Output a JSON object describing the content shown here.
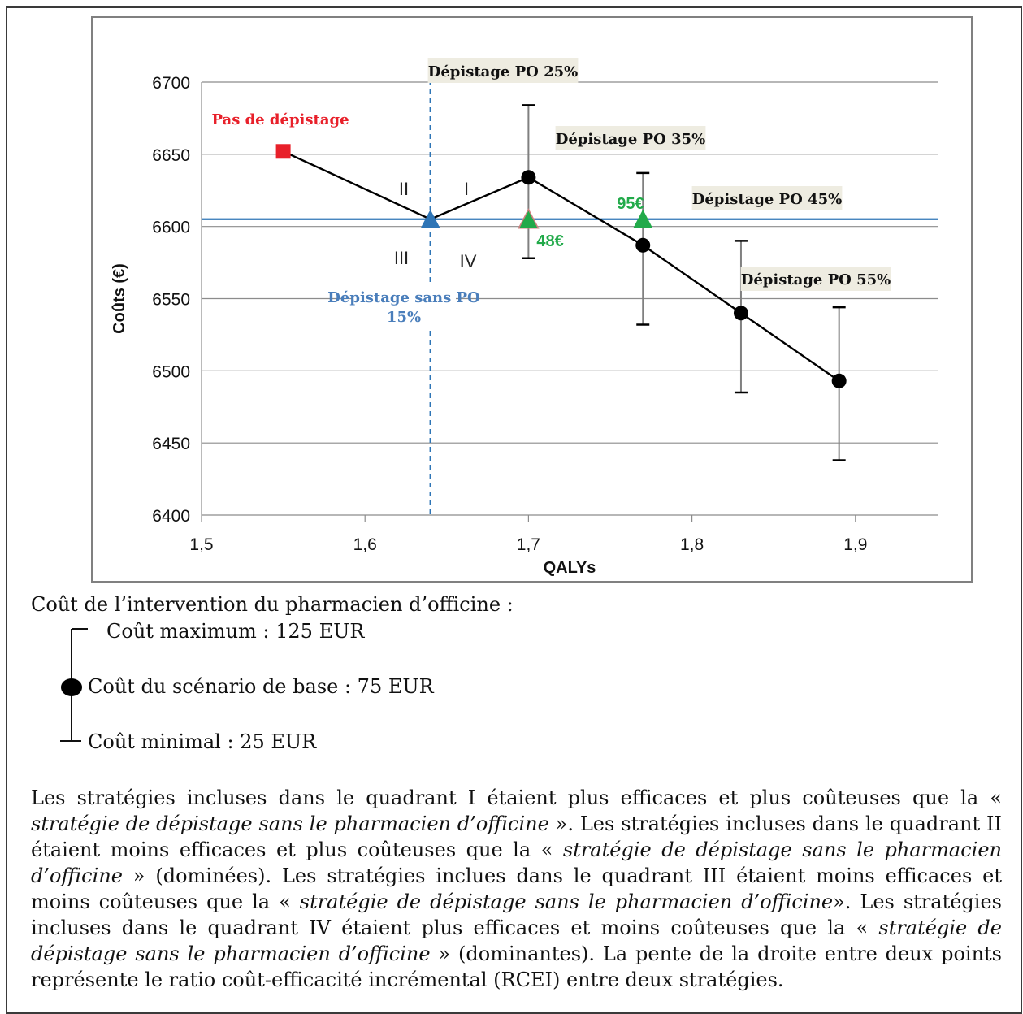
{
  "chart_data": {
    "type": "scatter",
    "xlabel": "QALYs",
    "ylabel": "Coûts (€)",
    "xlim": [
      1.5,
      1.95
    ],
    "ylim": [
      6400,
      6700
    ],
    "x_ticks": [
      "1,5",
      "1,6",
      "1,7",
      "1,8",
      "1,9"
    ],
    "x_tick_values": [
      1.5,
      1.6,
      1.7,
      1.8,
      1.9
    ],
    "y_ticks": [
      "6400",
      "6450",
      "6500",
      "6550",
      "6600",
      "6650",
      "6700"
    ],
    "y_tick_values": [
      6400,
      6450,
      6500,
      6550,
      6600,
      6650,
      6700
    ],
    "grid": "horizontal",
    "series": [
      {
        "name": "",
        "points": [
          {
            "label": "Pas de dépistage",
            "x": 1.55,
            "y": 6652,
            "marker": "square",
            "color": "#e8202a",
            "label_color": "#e8202a"
          },
          {
            "label": "Dépistage sans PO 15%",
            "x": 1.64,
            "y": 6605,
            "marker": "triangle",
            "color": "#2e75b6",
            "label_color": "#4a7ebb"
          },
          {
            "label": "Dépistage PO 25%",
            "x": 1.7,
            "y": 6634,
            "y_max": 6684,
            "y_min": 6578,
            "marker": "circle",
            "color": "#000000"
          },
          {
            "label": "Dépistage PO 35%",
            "x": 1.77,
            "y": 6587,
            "y_max": 6637,
            "y_min": 6532,
            "marker": "circle",
            "color": "#000000"
          },
          {
            "label": "Dépistage PO 45%",
            "x": 1.83,
            "y": 6540,
            "y_max": 6590,
            "y_min": 6485,
            "marker": "circle",
            "color": "#000000"
          },
          {
            "label": "Dépistage PO 55%",
            "x": 1.89,
            "y": 6493,
            "y_max": 6544,
            "y_min": 6438,
            "marker": "circle",
            "color": "#000000"
          }
        ]
      }
    ],
    "threshold_markers": [
      {
        "label": "48€",
        "x": 1.7,
        "y": 6605,
        "color": "#22aa4a"
      },
      {
        "label": "95€",
        "x": 1.77,
        "y": 6605,
        "color": "#22aa4a"
      }
    ],
    "reference_lines": {
      "horizontal_y": 6605,
      "vertical_x": 1.64,
      "color": "#2e75b6"
    },
    "quadrant_labels": [
      "I",
      "II",
      "III",
      "IV"
    ]
  },
  "legend": {
    "title": "Coût de l’intervention du pharmacien d’officine :",
    "max": "Coût maximum : 125 EUR",
    "base": "Coût du scénario de base : 75 EUR",
    "min": "Coût minimal : 25 EUR"
  },
  "paragraph": {
    "p1": "Les stratégies incluses dans le quadrant I étaient plus efficaces et plus coûteuses que la « ",
    "s1": "stratégie de dépistage sans le pharmacien d’officine",
    "p2": " ». Les stratégies incluses dans le quadrant II étaient moins efficaces et plus coûteuses que la « ",
    "s2": "stratégie de dépistage sans le pharmacien d’officine",
    "p3": " » (dominées). Les stratégies inclues dans le quadrant III étaient moins efficaces et moins coûteuses que la « ",
    "s3": "stratégie de dépistage sans le pharmacien d’officine",
    "p4": "». Les stratégies incluses dans le quadrant IV étaient plus efficaces et moins coûteuses que la « ",
    "s4": "stratégie de dépistage sans le pharmacien d’officine",
    "p5": " » (dominantes). La pente de la droite entre deux points représente le ratio coût-efficacité incrémental (RCEI) entre deux stratégies."
  }
}
